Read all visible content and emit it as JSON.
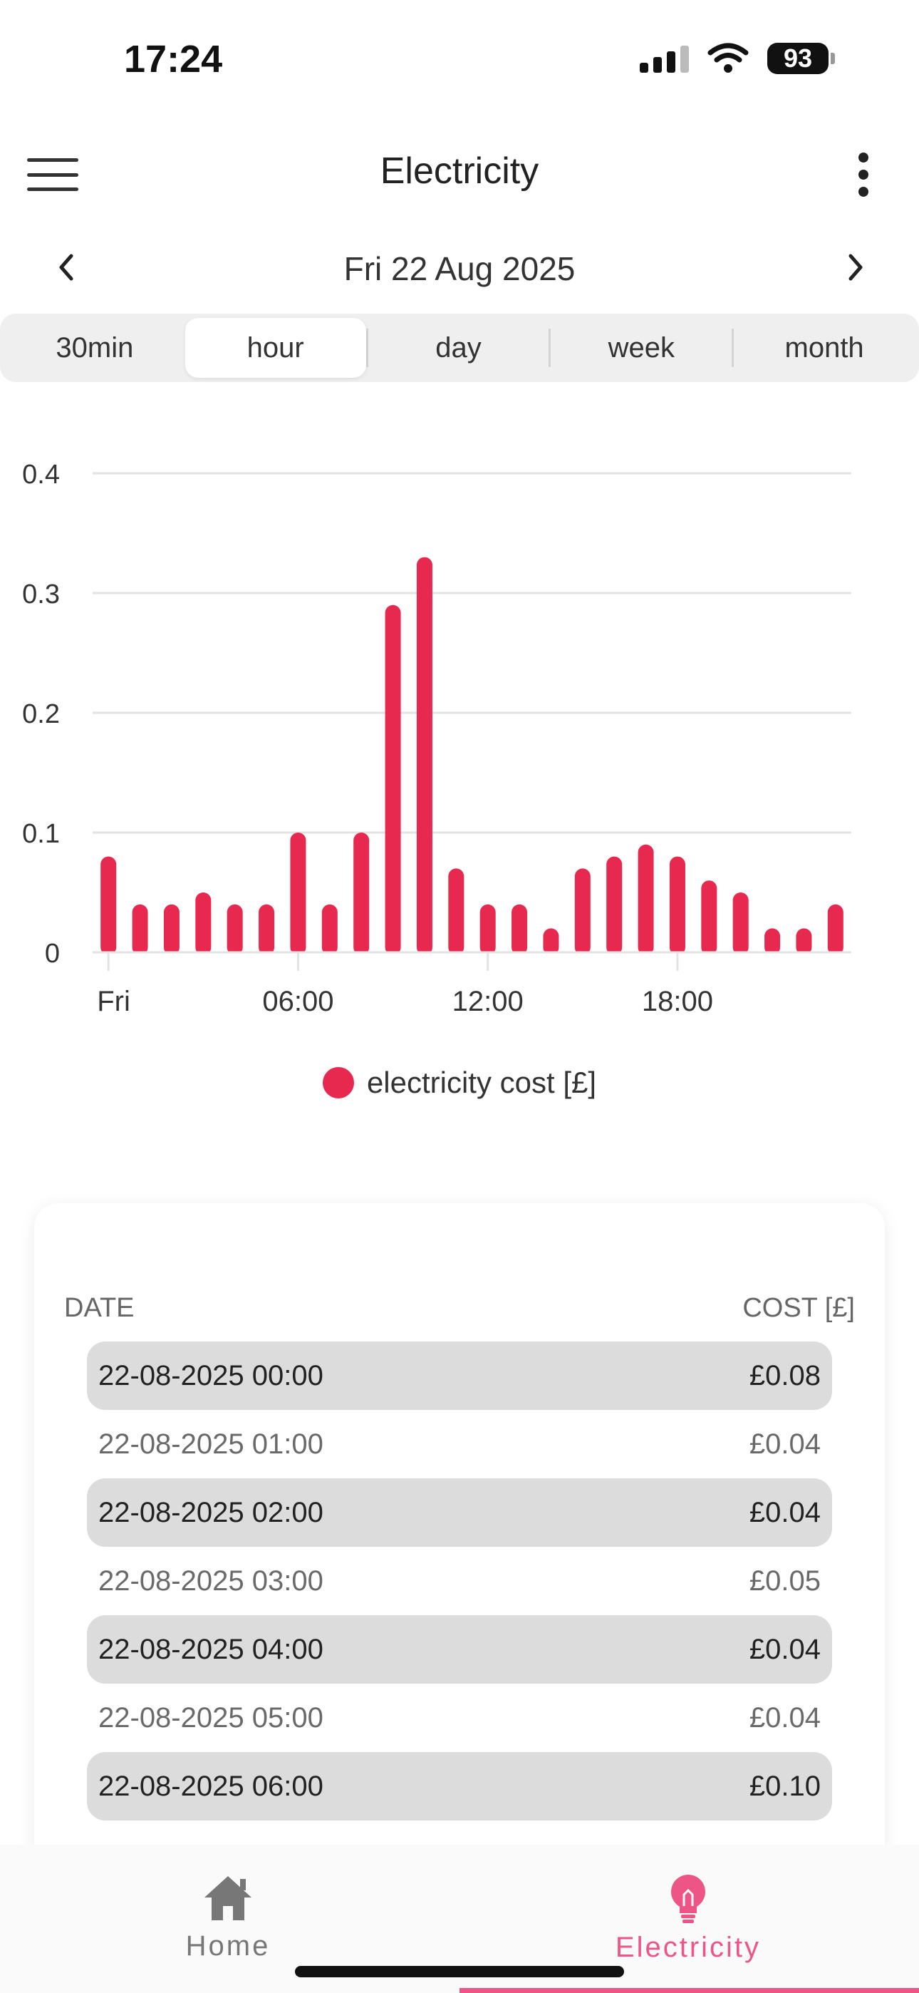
{
  "status_bar": {
    "time": "17:24",
    "battery": "93"
  },
  "header": {
    "title": "Electricity"
  },
  "date_nav": {
    "label": "Fri 22 Aug 2025"
  },
  "periods": [
    {
      "label": "30min",
      "active": false
    },
    {
      "label": "hour",
      "active": true
    },
    {
      "label": "day",
      "active": false
    },
    {
      "label": "week",
      "active": false
    },
    {
      "label": "month",
      "active": false
    }
  ],
  "colors": {
    "bar": "#e8294f",
    "accent": "#ec5585",
    "grid": "#e3e3e3"
  },
  "chart_data": {
    "type": "bar",
    "series": [
      {
        "name": "electricity cost [£]",
        "values": [
          0.08,
          0.04,
          0.04,
          0.05,
          0.04,
          0.04,
          0.1,
          0.04,
          0.1,
          0.29,
          0.33,
          0.07,
          0.04,
          0.04,
          0.02,
          0.07,
          0.08,
          0.09,
          0.08,
          0.06,
          0.05,
          0.02,
          0.02,
          0.04
        ]
      }
    ],
    "x_tick_labels": [
      "Fri",
      "06:00",
      "12:00",
      "18:00"
    ],
    "y_tick_labels": [
      "0",
      "0.1",
      "0.2",
      "0.3",
      "0.4"
    ],
    "ylim": [
      0,
      0.4
    ],
    "grid": true,
    "legend_position": "bottom-center"
  },
  "table": {
    "headers": {
      "date": "DATE",
      "cost": "COST [£]"
    },
    "rows": [
      {
        "date": "22-08-2025 00:00",
        "cost": "£0.08"
      },
      {
        "date": "22-08-2025 01:00",
        "cost": "£0.04"
      },
      {
        "date": "22-08-2025 02:00",
        "cost": "£0.04"
      },
      {
        "date": "22-08-2025 03:00",
        "cost": "£0.05"
      },
      {
        "date": "22-08-2025 04:00",
        "cost": "£0.04"
      },
      {
        "date": "22-08-2025 05:00",
        "cost": "£0.04"
      },
      {
        "date": "22-08-2025 06:00",
        "cost": "£0.10"
      }
    ]
  },
  "tabbar": {
    "home": "Home",
    "electricity": "Electricity"
  },
  "icons": {
    "menu": "hamburger-icon",
    "more": "more-vertical-icon",
    "prev": "chevron-left-icon",
    "next": "chevron-right-icon",
    "home": "house-icon",
    "electricity": "lightbulb-icon"
  }
}
